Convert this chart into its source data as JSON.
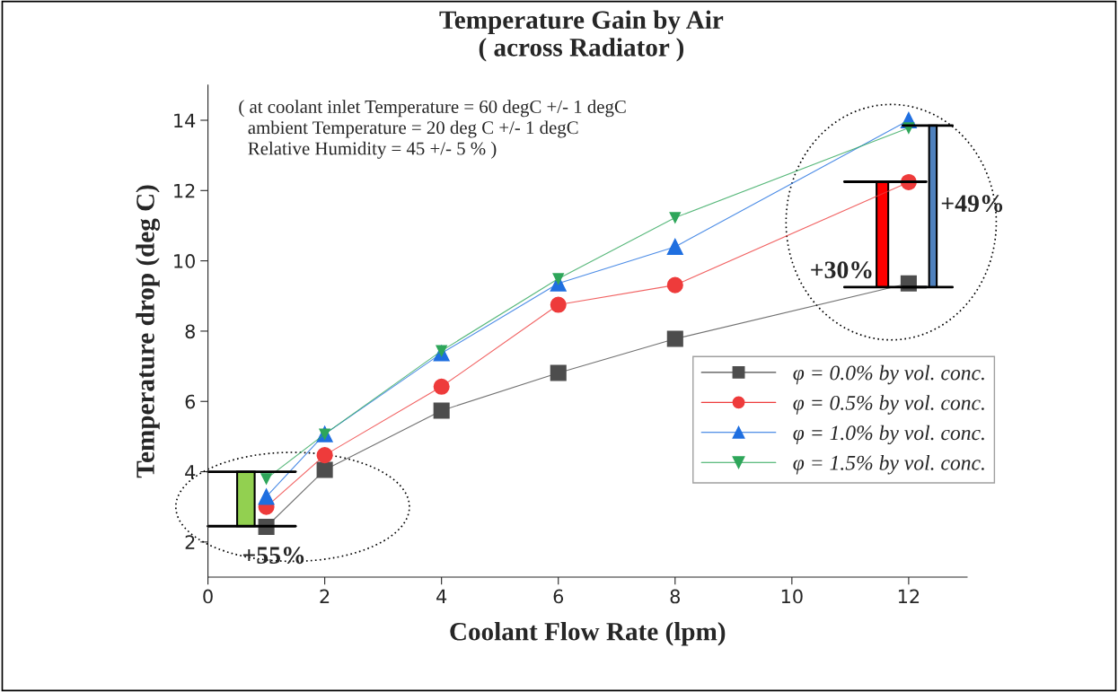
{
  "chart_data": {
    "type": "line",
    "title": "Temperature Gain by Air\n( across Radiator )",
    "xlabel": "Coolant Flow Rate (lpm)",
    "ylabel": "Temperature drop (deg C)",
    "x": [
      1,
      2,
      4,
      6,
      8,
      12
    ],
    "series": [
      {
        "name": "φ = 0.0% by vol. conc.",
        "color": "#4d4d4d",
        "marker": "square",
        "values": [
          2.43,
          4.05,
          5.74,
          6.81,
          7.78,
          9.36
        ]
      },
      {
        "name": "φ = 0.5% by vol. conc.",
        "color": "#ee3b3b",
        "marker": "circle",
        "values": [
          3.0,
          4.47,
          6.42,
          8.75,
          9.31,
          12.24
        ]
      },
      {
        "name": "φ = 1.0% by vol. conc.",
        "color": "#1f6fe0",
        "marker": "triangle",
        "values": [
          3.29,
          5.07,
          7.37,
          9.36,
          10.4,
          14.0
        ]
      },
      {
        "name": "φ = 1.5% by vol. conc.",
        "color": "#2ea65a",
        "marker": "triangle_down",
        "values": [
          3.8,
          5.07,
          7.44,
          9.49,
          11.23,
          13.78
        ]
      }
    ],
    "xlim": [
      0,
      13
    ],
    "xticks": [
      0,
      2,
      4,
      6,
      8,
      10,
      12
    ],
    "ylim": [
      1,
      15
    ],
    "yticks": [
      2,
      4,
      6,
      8,
      10,
      12,
      14
    ],
    "grid": false,
    "legend": "right",
    "annotations": [
      "( at coolant inlet Temperature = 60 degC +/- 1 degC\n  ambient Temperature = 20 deg C +/- 1 degC\n  Relative Humidity = 45 +/- 5 % )",
      "+55%",
      "+30%",
      "+49%"
    ]
  }
}
